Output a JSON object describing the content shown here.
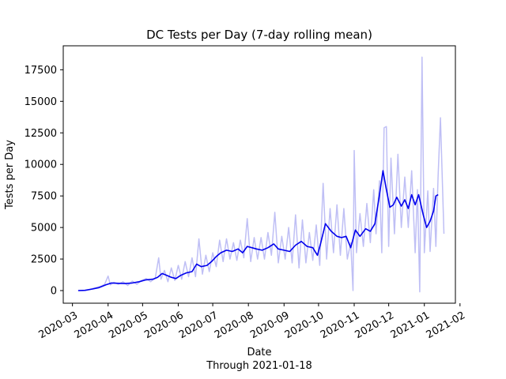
{
  "chart_data": {
    "type": "line",
    "title": "DC Tests per Day (7-day rolling mean)",
    "xlabel": "Date",
    "xlabel_sub": "Through 2021-01-18",
    "ylabel": "Tests per Day",
    "xlim": [
      "2020-02-22",
      "2021-01-28"
    ],
    "ylim": [
      -1000,
      19400
    ],
    "grid": false,
    "legend": "none",
    "x_ticks": [
      "2020-03",
      "2020-04",
      "2020-05",
      "2020-06",
      "2020-07",
      "2020-08",
      "2020-09",
      "2020-10",
      "2020-11",
      "2020-12",
      "2021-01",
      "2021-02"
    ],
    "y_ticks": [
      0,
      2500,
      5000,
      7500,
      10000,
      12500,
      15000,
      17500
    ],
    "y_tick_labels": [
      "0",
      "2500",
      "5000",
      "7500",
      "10000",
      "12500",
      "15000",
      "17500"
    ],
    "series": [
      {
        "role": "daily",
        "color": "#bfbff5",
        "points": [
          [
            "2020-03-06",
            0
          ],
          [
            "2020-03-10",
            0
          ],
          [
            "2020-03-14",
            50
          ],
          [
            "2020-03-18",
            150
          ],
          [
            "2020-03-22",
            250
          ],
          [
            "2020-03-26",
            350
          ],
          [
            "2020-03-29",
            500
          ],
          [
            "2020-04-01",
            1150
          ],
          [
            "2020-04-03",
            450
          ],
          [
            "2020-04-06",
            650
          ],
          [
            "2020-04-10",
            500
          ],
          [
            "2020-04-14",
            700
          ],
          [
            "2020-04-18",
            400
          ],
          [
            "2020-04-22",
            750
          ],
          [
            "2020-04-26",
            500
          ],
          [
            "2020-04-30",
            800
          ],
          [
            "2020-05-04",
            950
          ],
          [
            "2020-05-08",
            700
          ],
          [
            "2020-05-12",
            1000
          ],
          [
            "2020-05-15",
            2600
          ],
          [
            "2020-05-17",
            900
          ],
          [
            "2020-05-20",
            1600
          ],
          [
            "2020-05-23",
            700
          ],
          [
            "2020-05-26",
            1800
          ],
          [
            "2020-05-29",
            800
          ],
          [
            "2020-06-01",
            2000
          ],
          [
            "2020-06-04",
            900
          ],
          [
            "2020-06-07",
            2300
          ],
          [
            "2020-06-10",
            1100
          ],
          [
            "2020-06-13",
            2600
          ],
          [
            "2020-06-16",
            1100
          ],
          [
            "2020-06-19",
            4100
          ],
          [
            "2020-06-22",
            1300
          ],
          [
            "2020-06-25",
            2800
          ],
          [
            "2020-06-28",
            1500
          ],
          [
            "2020-07-01",
            3000
          ],
          [
            "2020-07-04",
            1900
          ],
          [
            "2020-07-07",
            4000
          ],
          [
            "2020-07-10",
            2300
          ],
          [
            "2020-07-13",
            4100
          ],
          [
            "2020-07-16",
            2500
          ],
          [
            "2020-07-19",
            3800
          ],
          [
            "2020-07-22",
            2400
          ],
          [
            "2020-07-25",
            4000
          ],
          [
            "2020-07-28",
            2600
          ],
          [
            "2020-07-31",
            5700
          ],
          [
            "2020-08-03",
            2300
          ],
          [
            "2020-08-06",
            4200
          ],
          [
            "2020-08-09",
            2500
          ],
          [
            "2020-08-12",
            4200
          ],
          [
            "2020-08-15",
            2500
          ],
          [
            "2020-08-18",
            4600
          ],
          [
            "2020-08-21",
            2800
          ],
          [
            "2020-08-24",
            6200
          ],
          [
            "2020-08-27",
            2200
          ],
          [
            "2020-08-30",
            4300
          ],
          [
            "2020-09-02",
            2500
          ],
          [
            "2020-09-05",
            5000
          ],
          [
            "2020-09-08",
            2200
          ],
          [
            "2020-09-11",
            6000
          ],
          [
            "2020-09-14",
            1800
          ],
          [
            "2020-09-17",
            5600
          ],
          [
            "2020-09-20",
            2200
          ],
          [
            "2020-09-23",
            4600
          ],
          [
            "2020-09-26",
            2400
          ],
          [
            "2020-09-29",
            5200
          ],
          [
            "2020-10-02",
            2000
          ],
          [
            "2020-10-05",
            8500
          ],
          [
            "2020-10-08",
            2500
          ],
          [
            "2020-10-11",
            6500
          ],
          [
            "2020-10-14",
            3000
          ],
          [
            "2020-10-17",
            6800
          ],
          [
            "2020-10-20",
            2800
          ],
          [
            "2020-10-23",
            6500
          ],
          [
            "2020-10-26",
            2500
          ],
          [
            "2020-10-29",
            3800
          ],
          [
            "2020-10-31",
            0
          ],
          [
            "2020-11-01",
            11100
          ],
          [
            "2020-11-03",
            3000
          ],
          [
            "2020-11-06",
            6100
          ],
          [
            "2020-11-09",
            3500
          ],
          [
            "2020-11-12",
            6900
          ],
          [
            "2020-11-15",
            3800
          ],
          [
            "2020-11-18",
            8000
          ],
          [
            "2020-11-20",
            4500
          ],
          [
            "2020-11-23",
            8700
          ],
          [
            "2020-11-25",
            3000
          ],
          [
            "2020-11-27",
            12900
          ],
          [
            "2020-11-29",
            13000
          ],
          [
            "2020-12-01",
            3500
          ],
          [
            "2020-12-03",
            10500
          ],
          [
            "2020-12-06",
            4500
          ],
          [
            "2020-12-09",
            10800
          ],
          [
            "2020-12-12",
            5000
          ],
          [
            "2020-12-15",
            9000
          ],
          [
            "2020-12-18",
            5000
          ],
          [
            "2020-12-21",
            9500
          ],
          [
            "2020-12-24",
            3000
          ],
          [
            "2020-12-26",
            8000
          ],
          [
            "2020-12-28",
            -100
          ],
          [
            "2020-12-30",
            18500
          ],
          [
            "2021-01-01",
            3000
          ],
          [
            "2021-01-04",
            7900
          ],
          [
            "2021-01-06",
            3100
          ],
          [
            "2021-01-09",
            8100
          ],
          [
            "2021-01-11",
            3500
          ],
          [
            "2021-01-13",
            9200
          ],
          [
            "2021-01-15",
            13700
          ],
          [
            "2021-01-18",
            4500
          ]
        ]
      },
      {
        "role": "7-day rolling mean",
        "color": "#0000ee",
        "points": [
          [
            "2020-03-06",
            0
          ],
          [
            "2020-03-12",
            20
          ],
          [
            "2020-03-18",
            120
          ],
          [
            "2020-03-24",
            230
          ],
          [
            "2020-03-30",
            450
          ],
          [
            "2020-04-04",
            600
          ],
          [
            "2020-04-10",
            580
          ],
          [
            "2020-04-16",
            560
          ],
          [
            "2020-04-22",
            600
          ],
          [
            "2020-04-28",
            700
          ],
          [
            "2020-05-04",
            850
          ],
          [
            "2020-05-10",
            900
          ],
          [
            "2020-05-14",
            1050
          ],
          [
            "2020-05-18",
            1350
          ],
          [
            "2020-05-22",
            1200
          ],
          [
            "2020-05-26",
            1050
          ],
          [
            "2020-05-30",
            950
          ],
          [
            "2020-06-03",
            1200
          ],
          [
            "2020-06-08",
            1400
          ],
          [
            "2020-06-13",
            1500
          ],
          [
            "2020-06-17",
            2100
          ],
          [
            "2020-06-21",
            1900
          ],
          [
            "2020-06-26",
            2000
          ],
          [
            "2020-06-30",
            2300
          ],
          [
            "2020-07-04",
            2700
          ],
          [
            "2020-07-08",
            3000
          ],
          [
            "2020-07-13",
            3200
          ],
          [
            "2020-07-18",
            3100
          ],
          [
            "2020-07-23",
            3300
          ],
          [
            "2020-07-27",
            3000
          ],
          [
            "2020-07-31",
            3500
          ],
          [
            "2020-08-04",
            3400
          ],
          [
            "2020-08-08",
            3300
          ],
          [
            "2020-08-13",
            3200
          ],
          [
            "2020-08-18",
            3400
          ],
          [
            "2020-08-23",
            3700
          ],
          [
            "2020-08-27",
            3300
          ],
          [
            "2020-09-01",
            3200
          ],
          [
            "2020-09-06",
            3100
          ],
          [
            "2020-09-11",
            3600
          ],
          [
            "2020-09-16",
            3900
          ],
          [
            "2020-09-21",
            3500
          ],
          [
            "2020-09-26",
            3400
          ],
          [
            "2020-09-30",
            2800
          ],
          [
            "2020-10-03",
            3800
          ],
          [
            "2020-10-07",
            5300
          ],
          [
            "2020-10-12",
            4700
          ],
          [
            "2020-10-17",
            4300
          ],
          [
            "2020-10-21",
            4200
          ],
          [
            "2020-10-25",
            4300
          ],
          [
            "2020-10-29",
            3400
          ],
          [
            "2020-11-02",
            4800
          ],
          [
            "2020-11-06",
            4300
          ],
          [
            "2020-11-11",
            4900
          ],
          [
            "2020-11-15",
            4700
          ],
          [
            "2020-11-19",
            5300
          ],
          [
            "2020-11-23",
            7600
          ],
          [
            "2020-11-26",
            9500
          ],
          [
            "2020-11-29",
            8000
          ],
          [
            "2020-12-02",
            6600
          ],
          [
            "2020-12-05",
            6800
          ],
          [
            "2020-12-08",
            7400
          ],
          [
            "2020-12-12",
            6700
          ],
          [
            "2020-12-15",
            7200
          ],
          [
            "2020-12-18",
            6500
          ],
          [
            "2020-12-21",
            7600
          ],
          [
            "2020-12-24",
            6800
          ],
          [
            "2020-12-27",
            7600
          ],
          [
            "2020-12-31",
            6000
          ],
          [
            "2021-01-03",
            5000
          ],
          [
            "2021-01-06",
            5500
          ],
          [
            "2021-01-09",
            6300
          ],
          [
            "2021-01-11",
            7500
          ],
          [
            "2021-01-13",
            7600
          ]
        ]
      }
    ]
  }
}
